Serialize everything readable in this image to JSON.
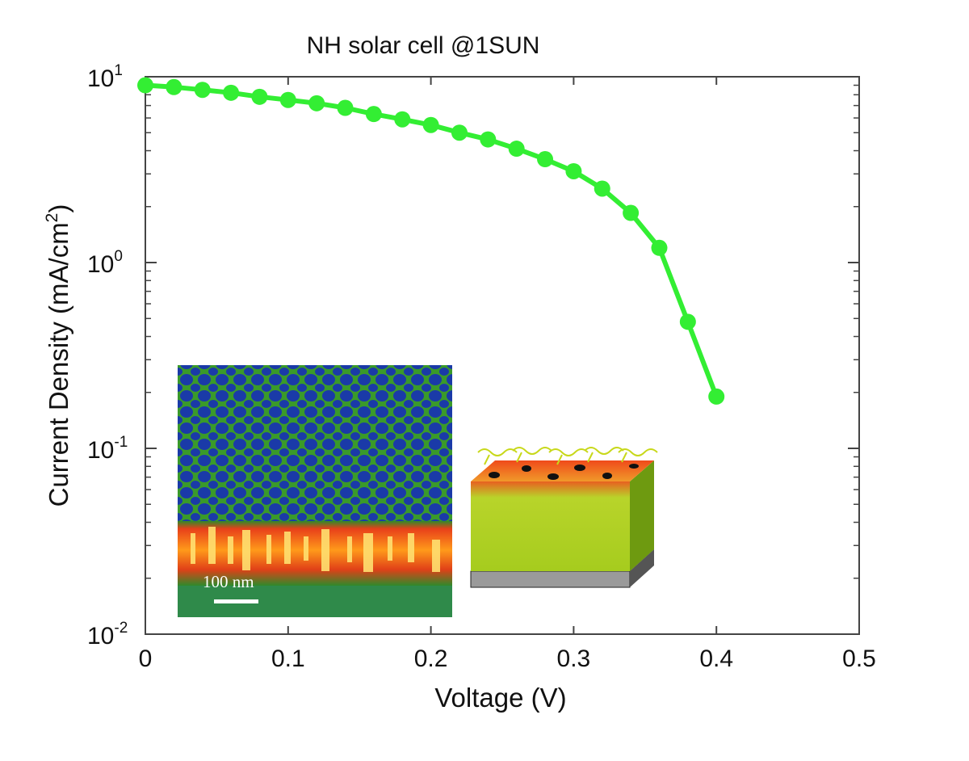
{
  "chart_data": {
    "type": "line",
    "title": "NH solar cell @1SUN",
    "xlabel": "Voltage (V)",
    "ylabel": {
      "base": "Current Density (mA/cm",
      "sup": "2",
      "close": ")"
    },
    "xlim": [
      0,
      0.5
    ],
    "ylim": [
      0.01,
      10
    ],
    "yscale": "log",
    "grid": false,
    "x_ticks": [
      "0",
      "0.1",
      "0.2",
      "0.3",
      "0.4",
      "0.5"
    ],
    "y_ticks": [
      {
        "base": "10",
        "exp": "1"
      },
      {
        "base": "10",
        "exp": "0"
      },
      {
        "base": "10",
        "exp": "-1"
      },
      {
        "base": "10",
        "exp": "-2"
      }
    ],
    "series": [
      {
        "color": "#33ee33",
        "x": [
          0,
          0.02,
          0.04,
          0.06,
          0.08,
          0.1,
          0.12,
          0.14,
          0.16,
          0.18,
          0.2,
          0.22,
          0.24,
          0.26,
          0.28,
          0.3,
          0.32,
          0.34,
          0.36,
          0.38,
          0.4
        ],
        "y": [
          9.0,
          8.8,
          8.5,
          8.2,
          7.8,
          7.5,
          7.2,
          6.8,
          6.3,
          5.9,
          5.5,
          5.0,
          4.6,
          4.1,
          3.6,
          3.1,
          2.5,
          1.85,
          1.2,
          0.48,
          0.19
        ]
      }
    ],
    "inset_annotation": "100 nm"
  }
}
